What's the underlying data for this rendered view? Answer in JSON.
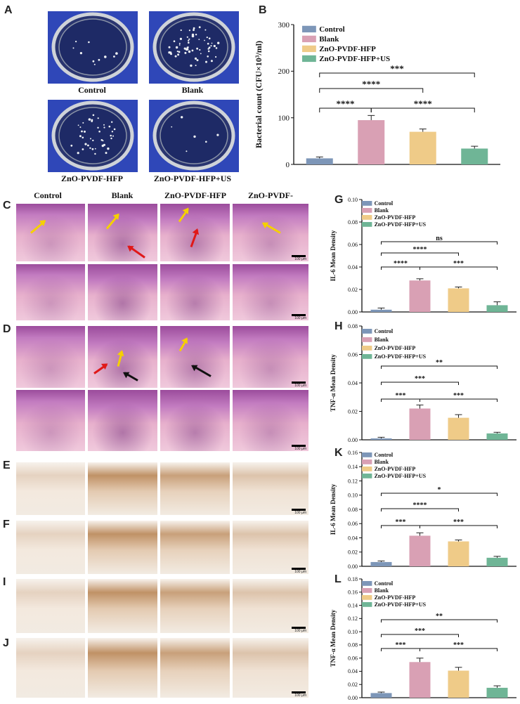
{
  "panels": {
    "A": "A",
    "B": "B",
    "C": "C",
    "D": "D",
    "E": "E",
    "F": "F",
    "G": "G",
    "H": "H",
    "I": "I",
    "J": "J",
    "K": "K",
    "L": "L"
  },
  "dishes": {
    "captions": [
      "Control",
      "Blank",
      "ZnO-PVDF-HFP",
      "ZnO-PVDF-HFP+US"
    ]
  },
  "histology": {
    "column_headers": [
      "Control",
      "Blank",
      "ZnO-PVDF-HFP",
      "ZnO-PVDF-HFP+US"
    ],
    "scale_label": "100 μm"
  },
  "chart_data": [
    {
      "panel": "B",
      "type": "bar",
      "categories": [
        "Control",
        "Blank",
        "ZnO-PVDF-HFP",
        "ZnO-PVDF-HFP+US"
      ],
      "values": [
        13,
        95,
        70,
        34
      ],
      "errors": [
        3,
        10,
        6,
        5
      ],
      "colors": [
        "#7d96b8",
        "#d9a0b4",
        "#efcb88",
        "#6fb596"
      ],
      "ylabel": "Bacterial count (CFU×10³/ml)",
      "ylim": [
        0,
        300
      ],
      "yticks": [
        "0",
        "100",
        "200",
        "300"
      ],
      "legend_position": "top-left",
      "significance": [
        {
          "from": 0,
          "to": 1,
          "label": "****"
        },
        {
          "from": 1,
          "to": 3,
          "label": "****"
        },
        {
          "from": 0,
          "to": 2,
          "label": "****"
        },
        {
          "from": 0,
          "to": 3,
          "label": "***"
        }
      ]
    },
    {
      "panel": "G",
      "type": "bar",
      "categories": [
        "Control",
        "Blank",
        "ZnO-PVDF-HFP",
        "ZnO-PVDF-HFP+US"
      ],
      "values": [
        0.002,
        0.028,
        0.021,
        0.006
      ],
      "errors": [
        0.0015,
        0.0015,
        0.0012,
        0.003
      ],
      "colors": [
        "#7d96b8",
        "#d9a0b4",
        "#efcb88",
        "#6fb596"
      ],
      "ylabel": "IL-6 Mean Density",
      "ylim": [
        0,
        0.1
      ],
      "yticks": [
        "0.00",
        "0.02",
        "0.04",
        "0.06",
        "0.08",
        "0.10"
      ],
      "legend_position": "top-left",
      "significance": [
        {
          "from": 0,
          "to": 1,
          "label": "****"
        },
        {
          "from": 1,
          "to": 3,
          "label": "***"
        },
        {
          "from": 0,
          "to": 2,
          "label": "****"
        },
        {
          "from": 0,
          "to": 3,
          "label": "ns"
        }
      ]
    },
    {
      "panel": "H",
      "type": "bar",
      "categories": [
        "Control",
        "Blank",
        "ZnO-PVDF-HFP",
        "ZnO-PVDF-HFP+US"
      ],
      "values": [
        0.001,
        0.022,
        0.0155,
        0.0045
      ],
      "errors": [
        0.0008,
        0.0025,
        0.0022,
        0.0008
      ],
      "colors": [
        "#7d96b8",
        "#d9a0b4",
        "#efcb88",
        "#6fb596"
      ],
      "ylabel": "TNF-α Mean Density",
      "ylim": [
        0,
        0.08
      ],
      "yticks": [
        "0.00",
        "0.02",
        "0.04",
        "0.06",
        "0.08"
      ],
      "legend_position": "top-left",
      "significance": [
        {
          "from": 0,
          "to": 1,
          "label": "***"
        },
        {
          "from": 1,
          "to": 3,
          "label": "***"
        },
        {
          "from": 0,
          "to": 2,
          "label": "***"
        },
        {
          "from": 0,
          "to": 3,
          "label": "**"
        }
      ]
    },
    {
      "panel": "K",
      "type": "bar",
      "categories": [
        "Control",
        "Blank",
        "ZnO-PVDF-HFP",
        "ZnO-PVDF-HFP+US"
      ],
      "values": [
        0.006,
        0.043,
        0.035,
        0.012
      ],
      "errors": [
        0.0015,
        0.004,
        0.002,
        0.002
      ],
      "colors": [
        "#7d96b8",
        "#d9a0b4",
        "#efcb88",
        "#6fb596"
      ],
      "ylabel": "IL-6 Mean Density",
      "ylim": [
        0,
        0.16
      ],
      "yticks": [
        "0.00",
        "0.02",
        "0.04",
        "0.06",
        "0.08",
        "0.10",
        "0.12",
        "0.14",
        "0.16"
      ],
      "legend_position": "top-left",
      "significance": [
        {
          "from": 0,
          "to": 1,
          "label": "***"
        },
        {
          "from": 1,
          "to": 3,
          "label": "***"
        },
        {
          "from": 0,
          "to": 2,
          "label": "****"
        },
        {
          "from": 0,
          "to": 3,
          "label": "*"
        }
      ]
    },
    {
      "panel": "L",
      "type": "bar",
      "categories": [
        "Control",
        "Blank",
        "ZnO-PVDF-HFP",
        "ZnO-PVDF-HFP+US"
      ],
      "values": [
        0.007,
        0.054,
        0.041,
        0.015
      ],
      "errors": [
        0.0015,
        0.006,
        0.005,
        0.003
      ],
      "colors": [
        "#7d96b8",
        "#d9a0b4",
        "#efcb88",
        "#6fb596"
      ],
      "ylabel": "TNF-α Mean Density",
      "ylim": [
        0,
        0.18
      ],
      "yticks": [
        "0.00",
        "0.02",
        "0.04",
        "0.06",
        "0.08",
        "0.10",
        "0.12",
        "0.14",
        "0.16",
        "0.18"
      ],
      "legend_position": "top-left",
      "significance": [
        {
          "from": 0,
          "to": 1,
          "label": "***"
        },
        {
          "from": 1,
          "to": 3,
          "label": "***"
        },
        {
          "from": 0,
          "to": 2,
          "label": "***"
        },
        {
          "from": 0,
          "to": 3,
          "label": "**"
        }
      ]
    }
  ],
  "colors": {
    "he_light": "#e9b5cf",
    "he_dark": "#8a3f8c",
    "ihc_light": "#efe4d6",
    "ihc_dark": "#b27a45",
    "dish_blue": "#2f47b8",
    "arrow_yellow": "#f5d000",
    "arrow_red": "#e01818",
    "arrow_black": "#111111"
  }
}
